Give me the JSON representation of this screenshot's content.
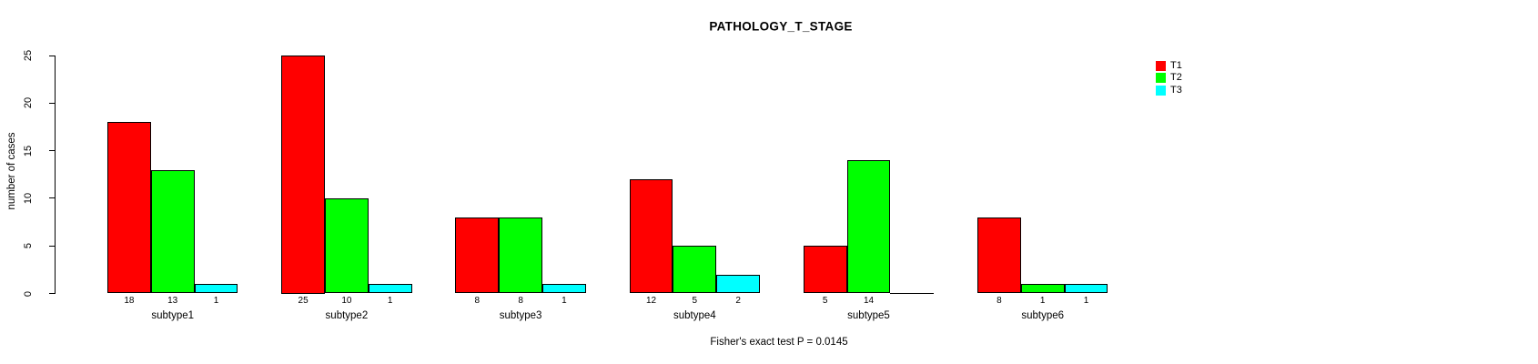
{
  "chart_data": {
    "type": "bar",
    "title": "PATHOLOGY_T_STAGE",
    "ylabel": "number of cases",
    "footnote": "Fisher's exact test P = 0.0145",
    "categories": [
      "subtype1",
      "subtype2",
      "subtype3",
      "subtype4",
      "subtype5",
      "subtype6"
    ],
    "series": [
      {
        "name": "T1",
        "color": "#ff0000",
        "values": [
          18,
          25,
          8,
          12,
          5,
          8
        ]
      },
      {
        "name": "T2",
        "color": "#00ff00",
        "values": [
          13,
          10,
          8,
          5,
          14,
          1
        ]
      },
      {
        "name": "T3",
        "color": "#00ffff",
        "values": [
          1,
          1,
          1,
          2,
          0,
          1
        ]
      }
    ],
    "ylim": [
      0,
      25
    ],
    "yticks": [
      0,
      5,
      10,
      15,
      20,
      25
    ],
    "bar_value_labels": true,
    "zero_value_label_hidden": true,
    "legend_position": "top-right",
    "grid": false,
    "axis_color": "#000000",
    "background": "#ffffff"
  }
}
